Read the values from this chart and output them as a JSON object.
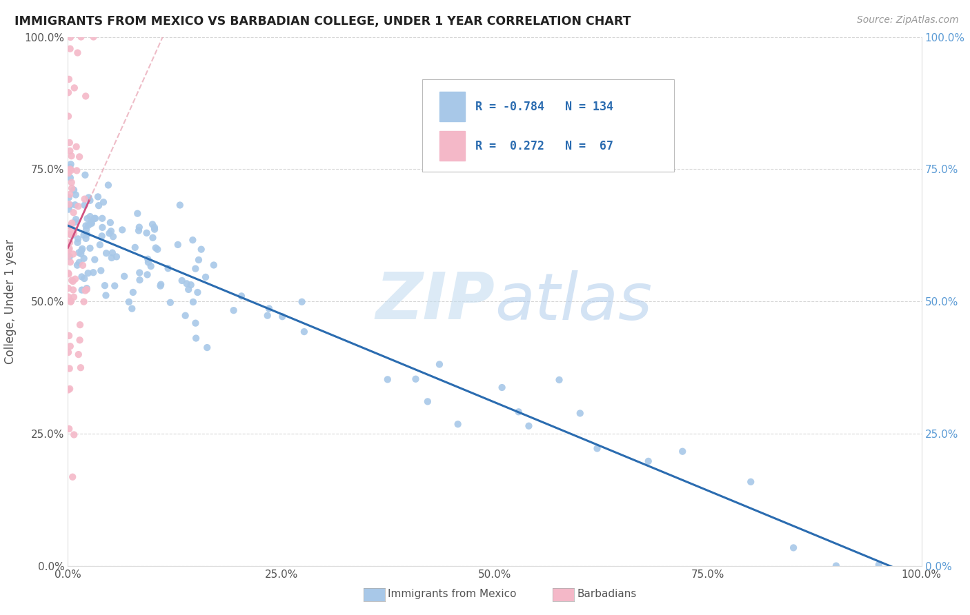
{
  "title": "IMMIGRANTS FROM MEXICO VS BARBADIAN COLLEGE, UNDER 1 YEAR CORRELATION CHART",
  "source": "Source: ZipAtlas.com",
  "ylabel": "College, Under 1 year",
  "tick_labels": [
    "0.0%",
    "25.0%",
    "50.0%",
    "75.0%",
    "100.0%"
  ],
  "blue_color": "#a8c8e8",
  "blue_line_color": "#2b6cb0",
  "pink_color": "#f4b8c8",
  "pink_line_color": "#d05080",
  "pink_line_dashed_color": "#e8a0b0",
  "background_color": "#ffffff",
  "grid_color": "#cccccc",
  "right_axis_color": "#5B9BD5",
  "title_color": "#222222",
  "source_color": "#999999",
  "ylabel_color": "#555555",
  "tick_color": "#555555",
  "legend_text_color": "#2b6cb0",
  "bottom_legend_color": "#555555",
  "watermark_zip_color": "#c8dff0",
  "watermark_atlas_color": "#b8d4ec"
}
